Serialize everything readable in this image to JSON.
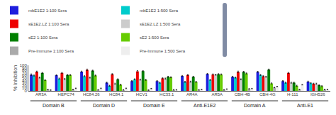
{
  "chart_data": {
    "type": "bar",
    "categories": [
      "AR3A",
      "HEPC74",
      "HC84.26",
      "HC84.1",
      "HCV1",
      "HC33.1",
      "AR4A",
      "AR5A",
      "CBH-4B",
      "CBH-4G",
      "H-111",
      "IGH526"
    ],
    "series": [
      {
        "name": "mbE1E2 1:100 Sera",
        "color": "#1e1edd",
        "values": [
          63,
          61,
          75,
          32,
          38,
          38,
          58,
          66,
          55,
          74,
          38,
          36
        ],
        "errors": [
          3,
          2,
          2,
          2,
          2,
          2,
          2,
          2,
          2,
          2,
          2,
          2
        ]
      },
      {
        "name": "mbE1E2 1:500 Sera",
        "color": "#00cccc",
        "values": [
          60,
          48,
          57,
          20,
          45,
          32,
          35,
          43,
          52,
          62,
          32,
          30
        ],
        "errors": [
          2,
          2,
          2,
          2,
          2,
          2,
          2,
          2,
          2,
          2,
          2,
          2
        ]
      },
      {
        "name": "sE1E2.LZ 1:100 Sera",
        "color": "#ee0000",
        "values": [
          75,
          70,
          82,
          65,
          76,
          49,
          62,
          64,
          74,
          57,
          70,
          28
        ],
        "errors": [
          2,
          2,
          3,
          2,
          3,
          2,
          2,
          2,
          3,
          2,
          2,
          2
        ]
      },
      {
        "name": "sE1E2.LZ 1:500 Sera",
        "color": "#cccccc",
        "values": [
          52,
          46,
          52,
          28,
          44,
          48,
          36,
          63,
          45,
          55,
          32,
          28
        ],
        "errors": [
          2,
          2,
          2,
          2,
          2,
          2,
          2,
          2,
          2,
          2,
          2,
          2
        ]
      },
      {
        "name": "sE2 1:100 Sera",
        "color": "#008000",
        "values": [
          70,
          62,
          79,
          45,
          77,
          55,
          55,
          65,
          74,
          83,
          32,
          22
        ],
        "errors": [
          2,
          2,
          2,
          2,
          2,
          2,
          2,
          2,
          2,
          2,
          2,
          2
        ]
      },
      {
        "name": "sE2 1:500 Sera",
        "color": "#66cc00",
        "values": [
          42,
          62,
          60,
          24,
          43,
          53,
          35,
          64,
          68,
          29,
          20,
          18
        ],
        "errors": [
          2,
          2,
          2,
          2,
          2,
          2,
          2,
          2,
          2,
          2,
          2,
          2
        ]
      },
      {
        "name": "Pre-Immune 1:100 Sera",
        "color": "#aaaaaa",
        "values": [
          5,
          5,
          4,
          4,
          3,
          4,
          4,
          4,
          8,
          13,
          5,
          5
        ],
        "errors": [
          1,
          1,
          1,
          1,
          1,
          1,
          1,
          1,
          1,
          1,
          1,
          1
        ]
      },
      {
        "name": "Pre-Immune 1:500 Sera",
        "color": "#eeeeee",
        "values": [
          3,
          10,
          10,
          10,
          9,
          4,
          5,
          7,
          9,
          17,
          24,
          5
        ],
        "errors": [
          1,
          1,
          1,
          1,
          1,
          1,
          1,
          1,
          1,
          1,
          1,
          1
        ]
      }
    ],
    "ylabel": "% Inhibition",
    "ylim": [
      0,
      100
    ],
    "yticks": [
      0,
      10,
      20,
      30,
      40,
      50,
      60,
      70,
      80,
      90,
      100
    ],
    "grid": false,
    "legend": "top",
    "annotations": [
      {
        "text": "Domain B",
        "from": "AR3A",
        "to": "HEPC74"
      },
      {
        "text": "Domain D",
        "from": "HC84.26",
        "to": "HC84.1"
      },
      {
        "text": "Domain E",
        "from": "HCV1",
        "to": "HC33.1"
      },
      {
        "text": "Anti-E1E2",
        "from": "AR4A",
        "to": "AR5A"
      },
      {
        "text": "Domain A",
        "from": "CBH-4B",
        "to": "CBH-4G"
      },
      {
        "text": "Anti-E1",
        "from": "H-111",
        "to": "IGH526"
      }
    ]
  }
}
